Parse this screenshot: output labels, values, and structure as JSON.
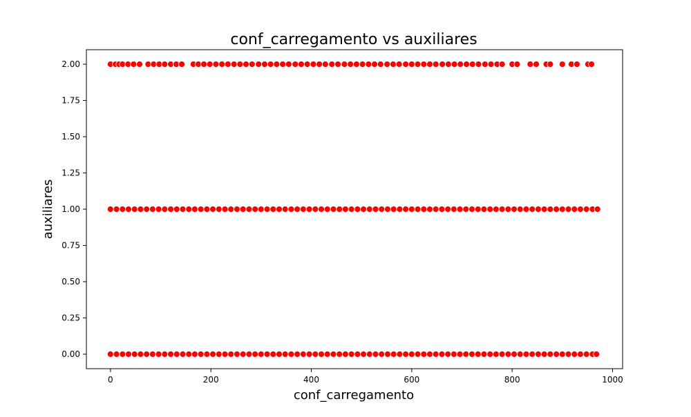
{
  "chart_data": {
    "type": "scatter",
    "title": "conf_carregamento vs auxiliares",
    "xlabel": "conf_carregamento",
    "ylabel": "auxiliares",
    "xlim": [
      -48,
      1020
    ],
    "ylim": [
      -0.1,
      2.1
    ],
    "x_ticks": [
      0,
      200,
      400,
      600,
      800,
      1000
    ],
    "x_tick_labels": [
      "0",
      "200",
      "400",
      "600",
      "800",
      "1000"
    ],
    "y_ticks": [
      0,
      0.25,
      0.5,
      0.75,
      1.0,
      1.25,
      1.5,
      1.75,
      2.0
    ],
    "y_tick_labels": [
      "0.00",
      "0.25",
      "0.50",
      "0.75",
      "1.00",
      "1.25",
      "1.50",
      "1.75",
      "2.00"
    ],
    "grid": false,
    "marker_color": "#ff0000",
    "marker_edge_color": "#ffffff",
    "series": [
      {
        "values": [
          {
            "x": 0,
            "y": 2
          },
          {
            "x": 10,
            "y": 2
          },
          {
            "x": 17,
            "y": 2
          },
          {
            "x": 24,
            "y": 2
          },
          {
            "x": 35,
            "y": 2
          },
          {
            "x": 46,
            "y": 2
          },
          {
            "x": 58,
            "y": 2
          },
          {
            "x": 75,
            "y": 2
          },
          {
            "x": 86,
            "y": 2
          },
          {
            "x": 97,
            "y": 2
          },
          {
            "x": 108,
            "y": 2
          },
          {
            "x": 120,
            "y": 2
          },
          {
            "x": 131,
            "y": 2
          },
          {
            "x": 142,
            "y": 2
          },
          {
            "x": 165,
            "y": 2
          },
          {
            "x": 175,
            "y": 2
          },
          {
            "x": 186,
            "y": 2
          },
          {
            "x": 198,
            "y": 2
          },
          {
            "x": 210,
            "y": 2
          },
          {
            "x": 222,
            "y": 2
          },
          {
            "x": 234,
            "y": 2
          },
          {
            "x": 246,
            "y": 2
          },
          {
            "x": 258,
            "y": 2
          },
          {
            "x": 270,
            "y": 2
          },
          {
            "x": 282,
            "y": 2
          },
          {
            "x": 295,
            "y": 2
          },
          {
            "x": 307,
            "y": 2
          },
          {
            "x": 319,
            "y": 2
          },
          {
            "x": 331,
            "y": 2
          },
          {
            "x": 343,
            "y": 2
          },
          {
            "x": 355,
            "y": 2
          },
          {
            "x": 368,
            "y": 2
          },
          {
            "x": 380,
            "y": 2
          },
          {
            "x": 392,
            "y": 2
          },
          {
            "x": 404,
            "y": 2
          },
          {
            "x": 416,
            "y": 2
          },
          {
            "x": 428,
            "y": 2
          },
          {
            "x": 441,
            "y": 2
          },
          {
            "x": 453,
            "y": 2
          },
          {
            "x": 466,
            "y": 2
          },
          {
            "x": 478,
            "y": 2
          },
          {
            "x": 490,
            "y": 2
          },
          {
            "x": 502,
            "y": 2
          },
          {
            "x": 514,
            "y": 2
          },
          {
            "x": 526,
            "y": 2
          },
          {
            "x": 538,
            "y": 2
          },
          {
            "x": 551,
            "y": 2
          },
          {
            "x": 563,
            "y": 2
          },
          {
            "x": 575,
            "y": 2
          },
          {
            "x": 588,
            "y": 2
          },
          {
            "x": 600,
            "y": 2
          },
          {
            "x": 612,
            "y": 2
          },
          {
            "x": 624,
            "y": 2
          },
          {
            "x": 636,
            "y": 2
          },
          {
            "x": 648,
            "y": 2
          },
          {
            "x": 661,
            "y": 2
          },
          {
            "x": 673,
            "y": 2
          },
          {
            "x": 685,
            "y": 2
          },
          {
            "x": 697,
            "y": 2
          },
          {
            "x": 709,
            "y": 2
          },
          {
            "x": 721,
            "y": 2
          },
          {
            "x": 733,
            "y": 2
          },
          {
            "x": 746,
            "y": 2
          },
          {
            "x": 758,
            "y": 2
          },
          {
            "x": 770,
            "y": 2
          },
          {
            "x": 780,
            "y": 2
          },
          {
            "x": 800,
            "y": 2
          },
          {
            "x": 810,
            "y": 2
          },
          {
            "x": 836,
            "y": 2
          },
          {
            "x": 848,
            "y": 2
          },
          {
            "x": 868,
            "y": 2
          },
          {
            "x": 876,
            "y": 2
          },
          {
            "x": 900,
            "y": 2
          },
          {
            "x": 918,
            "y": 2
          },
          {
            "x": 929,
            "y": 2
          },
          {
            "x": 951,
            "y": 2
          },
          {
            "x": 958,
            "y": 2
          },
          {
            "x": 0,
            "y": 1
          },
          {
            "x": 12,
            "y": 1
          },
          {
            "x": 24,
            "y": 1
          },
          {
            "x": 36,
            "y": 1
          },
          {
            "x": 48,
            "y": 1
          },
          {
            "x": 60,
            "y": 1
          },
          {
            "x": 72,
            "y": 1
          },
          {
            "x": 84,
            "y": 1
          },
          {
            "x": 96,
            "y": 1
          },
          {
            "x": 108,
            "y": 1
          },
          {
            "x": 120,
            "y": 1
          },
          {
            "x": 132,
            "y": 1
          },
          {
            "x": 144,
            "y": 1
          },
          {
            "x": 156,
            "y": 1
          },
          {
            "x": 168,
            "y": 1
          },
          {
            "x": 180,
            "y": 1
          },
          {
            "x": 192,
            "y": 1
          },
          {
            "x": 204,
            "y": 1
          },
          {
            "x": 216,
            "y": 1
          },
          {
            "x": 228,
            "y": 1
          },
          {
            "x": 240,
            "y": 1
          },
          {
            "x": 252,
            "y": 1
          },
          {
            "x": 264,
            "y": 1
          },
          {
            "x": 276,
            "y": 1
          },
          {
            "x": 288,
            "y": 1
          },
          {
            "x": 300,
            "y": 1
          },
          {
            "x": 312,
            "y": 1
          },
          {
            "x": 324,
            "y": 1
          },
          {
            "x": 336,
            "y": 1
          },
          {
            "x": 348,
            "y": 1
          },
          {
            "x": 360,
            "y": 1
          },
          {
            "x": 372,
            "y": 1
          },
          {
            "x": 384,
            "y": 1
          },
          {
            "x": 396,
            "y": 1
          },
          {
            "x": 408,
            "y": 1
          },
          {
            "x": 420,
            "y": 1
          },
          {
            "x": 432,
            "y": 1
          },
          {
            "x": 444,
            "y": 1
          },
          {
            "x": 456,
            "y": 1
          },
          {
            "x": 468,
            "y": 1
          },
          {
            "x": 480,
            "y": 1
          },
          {
            "x": 492,
            "y": 1
          },
          {
            "x": 504,
            "y": 1
          },
          {
            "x": 516,
            "y": 1
          },
          {
            "x": 528,
            "y": 1
          },
          {
            "x": 540,
            "y": 1
          },
          {
            "x": 552,
            "y": 1
          },
          {
            "x": 564,
            "y": 1
          },
          {
            "x": 576,
            "y": 1
          },
          {
            "x": 588,
            "y": 1
          },
          {
            "x": 600,
            "y": 1
          },
          {
            "x": 612,
            "y": 1
          },
          {
            "x": 624,
            "y": 1
          },
          {
            "x": 636,
            "y": 1
          },
          {
            "x": 648,
            "y": 1
          },
          {
            "x": 660,
            "y": 1
          },
          {
            "x": 672,
            "y": 1
          },
          {
            "x": 684,
            "y": 1
          },
          {
            "x": 696,
            "y": 1
          },
          {
            "x": 708,
            "y": 1
          },
          {
            "x": 720,
            "y": 1
          },
          {
            "x": 732,
            "y": 1
          },
          {
            "x": 744,
            "y": 1
          },
          {
            "x": 756,
            "y": 1
          },
          {
            "x": 768,
            "y": 1
          },
          {
            "x": 780,
            "y": 1
          },
          {
            "x": 792,
            "y": 1
          },
          {
            "x": 804,
            "y": 1
          },
          {
            "x": 816,
            "y": 1
          },
          {
            "x": 828,
            "y": 1
          },
          {
            "x": 840,
            "y": 1
          },
          {
            "x": 852,
            "y": 1
          },
          {
            "x": 864,
            "y": 1
          },
          {
            "x": 876,
            "y": 1
          },
          {
            "x": 888,
            "y": 1
          },
          {
            "x": 900,
            "y": 1
          },
          {
            "x": 912,
            "y": 1
          },
          {
            "x": 924,
            "y": 1
          },
          {
            "x": 936,
            "y": 1
          },
          {
            "x": 948,
            "y": 1
          },
          {
            "x": 960,
            "y": 1
          },
          {
            "x": 970,
            "y": 1
          },
          {
            "x": 0,
            "y": 0
          },
          {
            "x": 12,
            "y": 0
          },
          {
            "x": 24,
            "y": 0
          },
          {
            "x": 36,
            "y": 0
          },
          {
            "x": 48,
            "y": 0
          },
          {
            "x": 60,
            "y": 0
          },
          {
            "x": 72,
            "y": 0
          },
          {
            "x": 84,
            "y": 0
          },
          {
            "x": 96,
            "y": 0
          },
          {
            "x": 108,
            "y": 0
          },
          {
            "x": 120,
            "y": 0
          },
          {
            "x": 132,
            "y": 0
          },
          {
            "x": 144,
            "y": 0
          },
          {
            "x": 156,
            "y": 0
          },
          {
            "x": 168,
            "y": 0
          },
          {
            "x": 180,
            "y": 0
          },
          {
            "x": 192,
            "y": 0
          },
          {
            "x": 204,
            "y": 0
          },
          {
            "x": 216,
            "y": 0
          },
          {
            "x": 228,
            "y": 0
          },
          {
            "x": 240,
            "y": 0
          },
          {
            "x": 252,
            "y": 0
          },
          {
            "x": 264,
            "y": 0
          },
          {
            "x": 276,
            "y": 0
          },
          {
            "x": 288,
            "y": 0
          },
          {
            "x": 300,
            "y": 0
          },
          {
            "x": 312,
            "y": 0
          },
          {
            "x": 324,
            "y": 0
          },
          {
            "x": 336,
            "y": 0
          },
          {
            "x": 348,
            "y": 0
          },
          {
            "x": 360,
            "y": 0
          },
          {
            "x": 372,
            "y": 0
          },
          {
            "x": 384,
            "y": 0
          },
          {
            "x": 396,
            "y": 0
          },
          {
            "x": 408,
            "y": 0
          },
          {
            "x": 420,
            "y": 0
          },
          {
            "x": 432,
            "y": 0
          },
          {
            "x": 444,
            "y": 0
          },
          {
            "x": 456,
            "y": 0
          },
          {
            "x": 468,
            "y": 0
          },
          {
            "x": 480,
            "y": 0
          },
          {
            "x": 492,
            "y": 0
          },
          {
            "x": 504,
            "y": 0
          },
          {
            "x": 516,
            "y": 0
          },
          {
            "x": 528,
            "y": 0
          },
          {
            "x": 540,
            "y": 0
          },
          {
            "x": 552,
            "y": 0
          },
          {
            "x": 564,
            "y": 0
          },
          {
            "x": 576,
            "y": 0
          },
          {
            "x": 588,
            "y": 0
          },
          {
            "x": 600,
            "y": 0
          },
          {
            "x": 612,
            "y": 0
          },
          {
            "x": 624,
            "y": 0
          },
          {
            "x": 636,
            "y": 0
          },
          {
            "x": 648,
            "y": 0
          },
          {
            "x": 660,
            "y": 0
          },
          {
            "x": 672,
            "y": 0
          },
          {
            "x": 684,
            "y": 0
          },
          {
            "x": 696,
            "y": 0
          },
          {
            "x": 708,
            "y": 0
          },
          {
            "x": 720,
            "y": 0
          },
          {
            "x": 732,
            "y": 0
          },
          {
            "x": 744,
            "y": 0
          },
          {
            "x": 756,
            "y": 0
          },
          {
            "x": 768,
            "y": 0
          },
          {
            "x": 780,
            "y": 0
          },
          {
            "x": 792,
            "y": 0
          },
          {
            "x": 804,
            "y": 0
          },
          {
            "x": 816,
            "y": 0
          },
          {
            "x": 828,
            "y": 0
          },
          {
            "x": 840,
            "y": 0
          },
          {
            "x": 852,
            "y": 0
          },
          {
            "x": 864,
            "y": 0
          },
          {
            "x": 876,
            "y": 0
          },
          {
            "x": 888,
            "y": 0
          },
          {
            "x": 900,
            "y": 0
          },
          {
            "x": 912,
            "y": 0
          },
          {
            "x": 924,
            "y": 0
          },
          {
            "x": 936,
            "y": 0
          },
          {
            "x": 948,
            "y": 0
          },
          {
            "x": 960,
            "y": 0
          },
          {
            "x": 968,
            "y": 0
          }
        ]
      }
    ]
  }
}
